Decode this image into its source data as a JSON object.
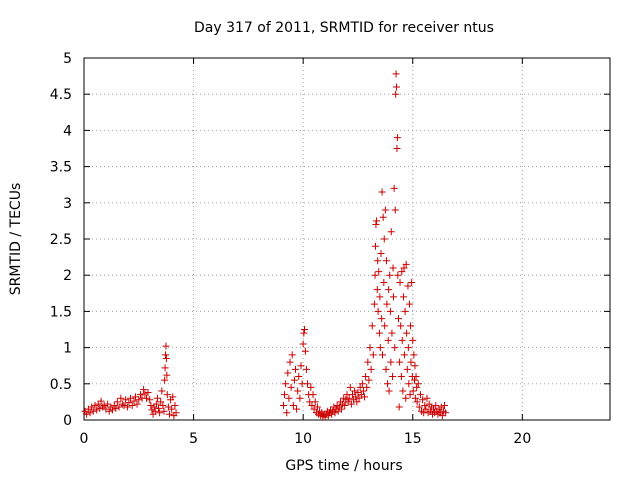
{
  "chart_data": {
    "type": "scatter",
    "title": "Day 317 of 2011, SRMTID for receiver ntus",
    "xlabel": "GPS time / hours",
    "ylabel": "SRMTID / TECUs",
    "xlim": [
      0,
      24
    ],
    "ylim": [
      0,
      5
    ],
    "x_ticks": [
      "0",
      "5",
      "10",
      "15",
      "20"
    ],
    "x_tick_values": [
      0,
      5,
      10,
      15,
      20
    ],
    "y_ticks": [
      "0",
      "0.5",
      "1",
      "1.5",
      "2",
      "2.5",
      "3",
      "3.5",
      "4",
      "4.5",
      "5"
    ],
    "y_tick_values": [
      0,
      0.5,
      1,
      1.5,
      2,
      2.5,
      3,
      3.5,
      4,
      4.5,
      5
    ],
    "grid": true,
    "marker": "+",
    "marker_color": "#cc0000",
    "series": [
      {
        "points": [
          [
            0.05,
            0.12
          ],
          [
            0.12,
            0.08
          ],
          [
            0.2,
            0.15
          ],
          [
            0.28,
            0.1
          ],
          [
            0.35,
            0.18
          ],
          [
            0.42,
            0.12
          ],
          [
            0.5,
            0.2
          ],
          [
            0.58,
            0.14
          ],
          [
            0.65,
            0.22
          ],
          [
            0.72,
            0.16
          ],
          [
            0.78,
            0.26
          ],
          [
            0.85,
            0.18
          ],
          [
            0.92,
            0.2
          ],
          [
            1.0,
            0.15
          ],
          [
            1.08,
            0.22
          ],
          [
            1.15,
            0.12
          ],
          [
            1.22,
            0.18
          ],
          [
            1.3,
            0.14
          ],
          [
            1.38,
            0.2
          ],
          [
            1.45,
            0.16
          ],
          [
            1.52,
            0.25
          ],
          [
            1.6,
            0.18
          ],
          [
            1.68,
            0.3
          ],
          [
            1.75,
            0.22
          ],
          [
            1.82,
            0.2
          ],
          [
            1.9,
            0.28
          ],
          [
            1.98,
            0.18
          ],
          [
            2.05,
            0.24
          ],
          [
            2.12,
            0.3
          ],
          [
            2.2,
            0.2
          ],
          [
            2.28,
            0.26
          ],
          [
            2.35,
            0.32
          ],
          [
            2.42,
            0.22
          ],
          [
            2.5,
            0.28
          ],
          [
            2.58,
            0.35
          ],
          [
            2.65,
            0.3
          ],
          [
            2.72,
            0.42
          ],
          [
            2.78,
            0.36
          ],
          [
            2.85,
            0.3
          ],
          [
            2.92,
            0.38
          ],
          [
            3.0,
            0.28
          ],
          [
            3.05,
            0.2
          ],
          [
            3.1,
            0.14
          ],
          [
            3.15,
            0.08
          ],
          [
            3.2,
            0.18
          ],
          [
            3.25,
            0.12
          ],
          [
            3.3,
            0.22
          ],
          [
            3.35,
            0.3
          ],
          [
            3.4,
            0.16
          ],
          [
            3.45,
            0.1
          ],
          [
            3.5,
            0.25
          ],
          [
            3.55,
            0.4
          ],
          [
            3.6,
            0.2
          ],
          [
            3.65,
            0.12
          ],
          [
            3.68,
            0.55
          ],
          [
            3.7,
            0.72
          ],
          [
            3.72,
            0.9
          ],
          [
            3.74,
            1.02
          ],
          [
            3.76,
            0.85
          ],
          [
            3.78,
            0.62
          ],
          [
            3.8,
            0.35
          ],
          [
            3.85,
            0.18
          ],
          [
            3.9,
            0.08
          ],
          [
            3.95,
            0.28
          ],
          [
            4.0,
            0.15
          ],
          [
            4.05,
            0.32
          ],
          [
            4.1,
            0.06
          ],
          [
            4.15,
            0.2
          ],
          [
            4.2,
            0.1
          ],
          [
            9.1,
            0.2
          ],
          [
            9.15,
            0.35
          ],
          [
            9.2,
            0.5
          ],
          [
            9.25,
            0.1
          ],
          [
            9.3,
            0.65
          ],
          [
            9.35,
            0.3
          ],
          [
            9.4,
            0.8
          ],
          [
            9.45,
            0.45
          ],
          [
            9.5,
            0.9
          ],
          [
            9.55,
            0.2
          ],
          [
            9.6,
            0.55
          ],
          [
            9.65,
            0.7
          ],
          [
            9.7,
            0.15
          ],
          [
            9.75,
            0.4
          ],
          [
            9.8,
            0.6
          ],
          [
            9.85,
            0.3
          ],
          [
            9.9,
            0.75
          ],
          [
            9.95,
            0.5
          ],
          [
            10.0,
            1.05
          ],
          [
            10.03,
            1.2
          ],
          [
            10.06,
            1.25
          ],
          [
            10.1,
            0.95
          ],
          [
            10.15,
            0.7
          ],
          [
            10.2,
            0.5
          ],
          [
            10.25,
            0.35
          ],
          [
            10.3,
            0.25
          ],
          [
            10.35,
            0.45
          ],
          [
            10.4,
            0.2
          ],
          [
            10.45,
            0.35
          ],
          [
            10.5,
            0.15
          ],
          [
            10.55,
            0.25
          ],
          [
            10.6,
            0.1
          ],
          [
            10.65,
            0.18
          ],
          [
            10.7,
            0.08
          ],
          [
            10.75,
            0.12
          ],
          [
            10.8,
            0.06
          ],
          [
            10.85,
            0.1
          ],
          [
            10.9,
            0.05
          ],
          [
            10.95,
            0.08
          ],
          [
            11.0,
            0.04
          ],
          [
            11.05,
            0.08
          ],
          [
            11.1,
            0.12
          ],
          [
            11.15,
            0.06
          ],
          [
            11.2,
            0.1
          ],
          [
            11.25,
            0.14
          ],
          [
            11.3,
            0.08
          ],
          [
            11.35,
            0.12
          ],
          [
            11.4,
            0.18
          ],
          [
            11.45,
            0.1
          ],
          [
            11.5,
            0.15
          ],
          [
            11.55,
            0.2
          ],
          [
            11.6,
            0.12
          ],
          [
            11.65,
            0.18
          ],
          [
            11.7,
            0.25
          ],
          [
            11.75,
            0.15
          ],
          [
            11.8,
            0.22
          ],
          [
            11.85,
            0.3
          ],
          [
            11.9,
            0.2
          ],
          [
            11.95,
            0.28
          ],
          [
            12.0,
            0.35
          ],
          [
            12.05,
            0.25
          ],
          [
            12.1,
            0.3
          ],
          [
            12.15,
            0.45
          ],
          [
            12.2,
            0.22
          ],
          [
            12.25,
            0.35
          ],
          [
            12.3,
            0.28
          ],
          [
            12.35,
            0.4
          ],
          [
            12.4,
            0.32
          ],
          [
            12.45,
            0.25
          ],
          [
            12.5,
            0.38
          ],
          [
            12.55,
            0.3
          ],
          [
            12.6,
            0.45
          ],
          [
            12.65,
            0.35
          ],
          [
            12.7,
            0.5
          ],
          [
            12.75,
            0.4
          ],
          [
            12.8,
            0.32
          ],
          [
            12.85,
            0.6
          ],
          [
            12.9,
            0.45
          ],
          [
            12.95,
            0.8
          ],
          [
            13.0,
            0.55
          ],
          [
            13.05,
            1.0
          ],
          [
            13.1,
            0.7
          ],
          [
            13.15,
            1.3
          ],
          [
            13.2,
            0.9
          ],
          [
            13.25,
            1.6
          ],
          [
            13.28,
            2.0
          ],
          [
            13.3,
            2.4
          ],
          [
            13.32,
            2.7
          ],
          [
            13.35,
            2.75
          ],
          [
            13.38,
            1.8
          ],
          [
            13.4,
            2.2
          ],
          [
            13.42,
            1.5
          ],
          [
            13.45,
            2.05
          ],
          [
            13.48,
            1.2
          ],
          [
            13.5,
            1.7
          ],
          [
            13.52,
            1.0
          ],
          [
            13.55,
            2.3
          ],
          [
            13.58,
            1.4
          ],
          [
            13.6,
            3.15
          ],
          [
            13.62,
            0.9
          ],
          [
            13.65,
            2.8
          ],
          [
            13.68,
            1.9
          ],
          [
            13.7,
            2.5
          ],
          [
            13.72,
            1.3
          ],
          [
            13.75,
            2.9
          ],
          [
            13.78,
            0.7
          ],
          [
            13.8,
            2.2
          ],
          [
            13.82,
            1.6
          ],
          [
            13.85,
            0.5
          ],
          [
            13.88,
            1.1
          ],
          [
            13.9,
            1.8
          ],
          [
            13.92,
            0.4
          ],
          [
            13.95,
            2.0
          ],
          [
            13.98,
            1.5
          ],
          [
            14.0,
            0.8
          ],
          [
            14.02,
            2.6
          ],
          [
            14.05,
            1.2
          ],
          [
            14.08,
            0.6
          ],
          [
            14.1,
            2.1
          ],
          [
            14.12,
            1.7
          ],
          [
            14.15,
            3.2
          ],
          [
            14.18,
            1.0
          ],
          [
            14.2,
            2.9
          ],
          [
            14.22,
            4.5
          ],
          [
            14.24,
            4.78
          ],
          [
            14.26,
            4.6
          ],
          [
            14.28,
            3.75
          ],
          [
            14.3,
            3.9
          ],
          [
            14.32,
            2.0
          ],
          [
            14.35,
            1.4
          ],
          [
            14.38,
            0.18
          ],
          [
            14.4,
            0.8
          ],
          [
            14.42,
            1.9
          ],
          [
            14.45,
            1.3
          ],
          [
            14.48,
            0.6
          ],
          [
            14.5,
            2.05
          ],
          [
            14.52,
            1.1
          ],
          [
            14.55,
            0.4
          ],
          [
            14.58,
            1.7
          ],
          [
            14.6,
            2.1
          ],
          [
            14.62,
            0.9
          ],
          [
            14.65,
            1.5
          ],
          [
            14.68,
            0.3
          ],
          [
            14.7,
            2.15
          ],
          [
            14.72,
            1.2
          ],
          [
            14.75,
            0.7
          ],
          [
            14.78,
            1.85
          ],
          [
            14.8,
            1.0
          ],
          [
            14.82,
            0.5
          ],
          [
            14.85,
            1.6
          ],
          [
            14.88,
            0.35
          ],
          [
            14.9,
            1.3
          ],
          [
            14.92,
            0.8
          ],
          [
            14.95,
            1.9
          ],
          [
            14.98,
            0.6
          ],
          [
            15.0,
            1.1
          ],
          [
            15.02,
            0.4
          ],
          [
            15.05,
            0.9
          ],
          [
            15.08,
            0.55
          ],
          [
            15.1,
            0.75
          ],
          [
            15.12,
            0.3
          ],
          [
            15.15,
            0.6
          ],
          [
            15.18,
            0.45
          ],
          [
            15.2,
            0.25
          ],
          [
            15.25,
            0.5
          ],
          [
            15.3,
            0.18
          ],
          [
            15.35,
            0.35
          ],
          [
            15.4,
            0.12
          ],
          [
            15.45,
            0.28
          ],
          [
            15.5,
            0.1
          ],
          [
            15.55,
            0.2
          ],
          [
            15.6,
            0.15
          ],
          [
            15.65,
            0.3
          ],
          [
            15.7,
            0.1
          ],
          [
            15.75,
            0.22
          ],
          [
            15.8,
            0.12
          ],
          [
            15.85,
            0.18
          ],
          [
            15.9,
            0.08
          ],
          [
            15.95,
            0.15
          ],
          [
            16.0,
            0.1
          ],
          [
            16.05,
            0.2
          ],
          [
            16.1,
            0.12
          ],
          [
            16.15,
            0.08
          ],
          [
            16.2,
            0.15
          ],
          [
            16.25,
            0.1
          ],
          [
            16.3,
            0.18
          ],
          [
            16.35,
            0.06
          ],
          [
            16.4,
            0.12
          ],
          [
            16.45,
            0.2
          ],
          [
            16.5,
            0.1
          ]
        ]
      }
    ]
  }
}
